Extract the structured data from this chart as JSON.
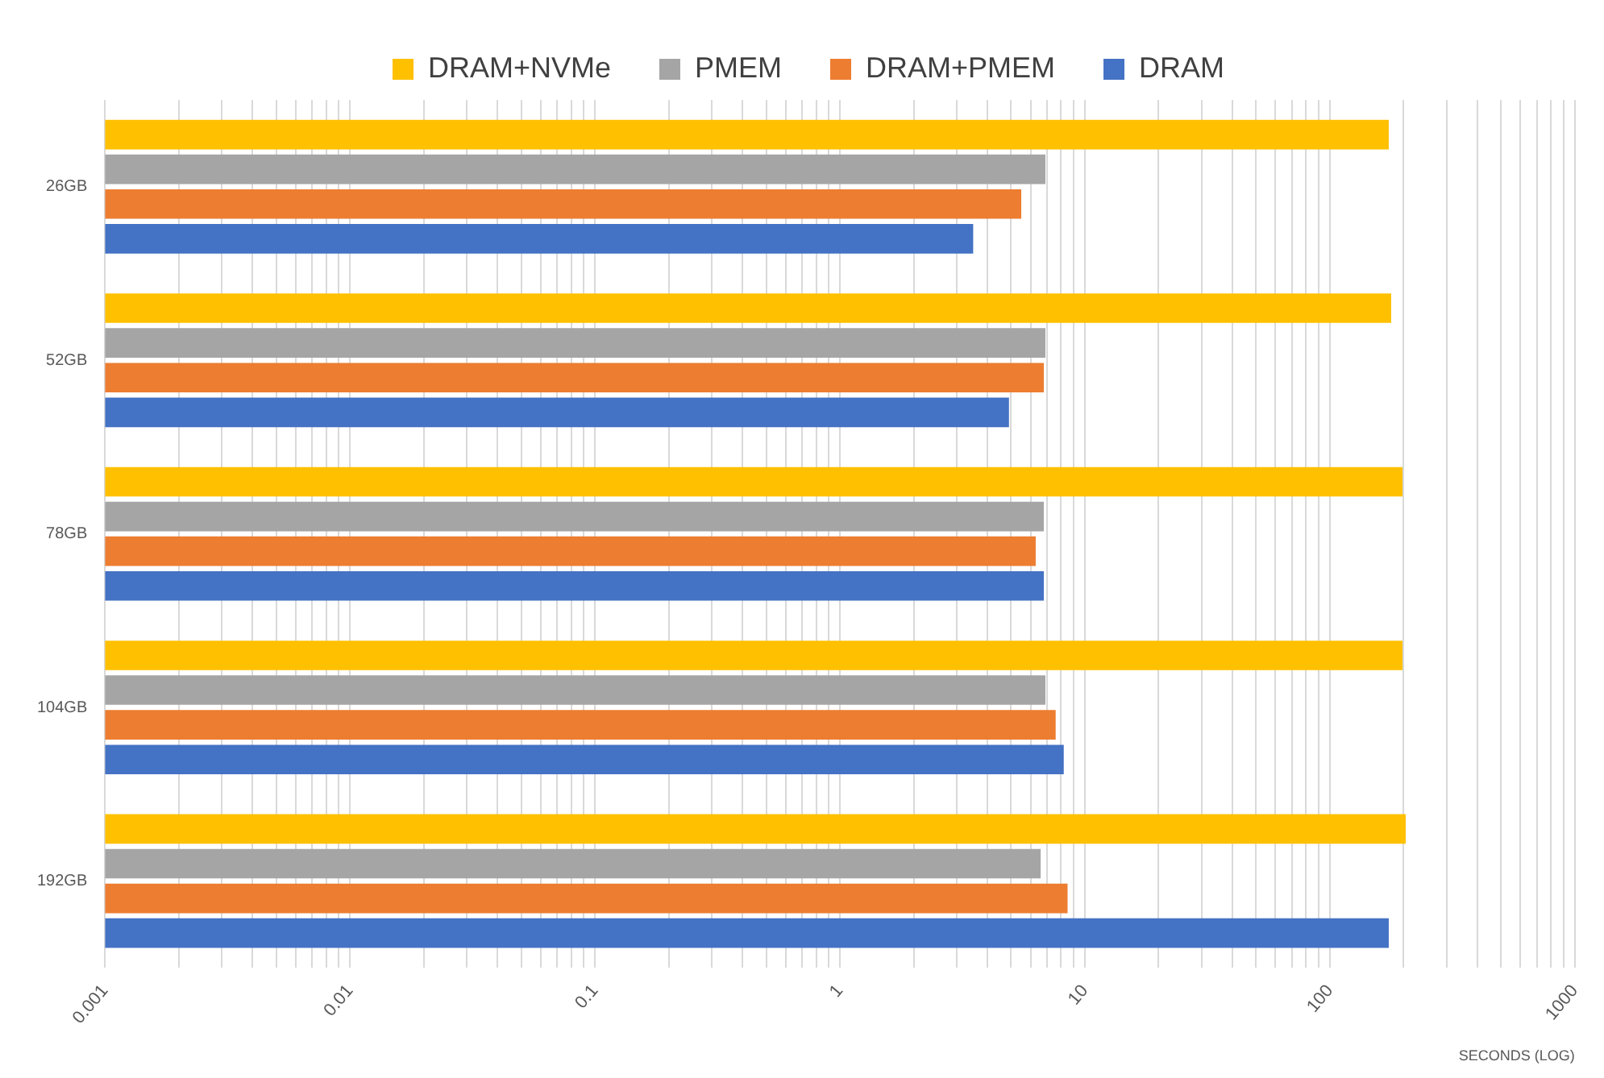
{
  "chart_data": {
    "type": "bar",
    "orientation": "horizontal",
    "log": "x",
    "grid": "x",
    "legend": "top",
    "xlabel": "SECONDS (LOG)",
    "categories": [
      "26GB",
      "52GB",
      "78GB",
      "104GB",
      "192GB"
    ],
    "series": [
      {
        "name": "DRAM+NVMe",
        "color": "#ffc000",
        "values": [
          174,
          178,
          198,
          198,
          204
        ]
      },
      {
        "name": "PMEM",
        "color": "#a5a5a5",
        "values": [
          6.9,
          6.9,
          6.8,
          6.9,
          6.6
        ]
      },
      {
        "name": "DRAM+PMEM",
        "color": "#ed7d31",
        "values": [
          5.5,
          6.8,
          6.3,
          7.6,
          8.5
        ]
      },
      {
        "name": "DRAM",
        "color": "#4472c4",
        "values": [
          3.5,
          4.9,
          6.8,
          8.2,
          174
        ]
      }
    ],
    "xlim": [
      0.001,
      1000
    ],
    "xticks": [
      0.001,
      {
        "value": 0.002,
        "label": null
      },
      {
        "value": 0.003,
        "label": null
      },
      {
        "value": 0.004,
        "label": null
      },
      {
        "value": 0.005,
        "label": null
      },
      {
        "value": 0.006,
        "label": null
      },
      {
        "value": 0.007,
        "label": null
      },
      {
        "value": 0.008,
        "label": null
      },
      {
        "value": 0.009,
        "label": null
      },
      0.01,
      {
        "value": 0.02,
        "label": null
      },
      {
        "value": 0.03,
        "label": null
      },
      {
        "value": 0.04,
        "label": null
      },
      {
        "value": 0.05,
        "label": null
      },
      {
        "value": 0.06,
        "label": null
      },
      {
        "value": 0.07,
        "label": null
      },
      {
        "value": 0.08,
        "label": null
      },
      {
        "value": 0.09,
        "label": null
      },
      0.1,
      {
        "value": 0.2,
        "label": null
      },
      {
        "value": 0.3,
        "label": null
      },
      {
        "value": 0.4,
        "label": null
      },
      {
        "value": 0.5,
        "label": null
      },
      {
        "value": 0.6,
        "label": null
      },
      {
        "value": 0.7,
        "label": null
      },
      {
        "value": 0.8,
        "label": null
      },
      {
        "value": 0.9,
        "label": null
      },
      1,
      {
        "value": 2,
        "label": null
      },
      {
        "value": 3,
        "label": null
      },
      {
        "value": 4,
        "label": null
      },
      {
        "value": 5,
        "label": null
      },
      {
        "value": 6,
        "label": null
      },
      {
        "value": 7,
        "label": null
      },
      {
        "value": 8,
        "label": null
      },
      {
        "value": 9,
        "label": null
      },
      10,
      {
        "value": 20,
        "label": null
      },
      {
        "value": 30,
        "label": null
      },
      {
        "value": 40,
        "label": null
      },
      {
        "value": 50,
        "label": null
      },
      {
        "value": 60,
        "label": null
      },
      {
        "value": 70,
        "label": null
      },
      {
        "value": 80,
        "label": null
      },
      {
        "value": 90,
        "label": null
      },
      100,
      {
        "value": 200,
        "label": null
      },
      {
        "value": 300,
        "label": null
      },
      {
        "value": 400,
        "label": null
      },
      {
        "value": 500,
        "label": null
      },
      {
        "value": 600,
        "label": null
      },
      {
        "value": 700,
        "label": null
      },
      {
        "value": 800,
        "label": null
      },
      {
        "value": 900,
        "label": null
      },
      1000
    ]
  }
}
